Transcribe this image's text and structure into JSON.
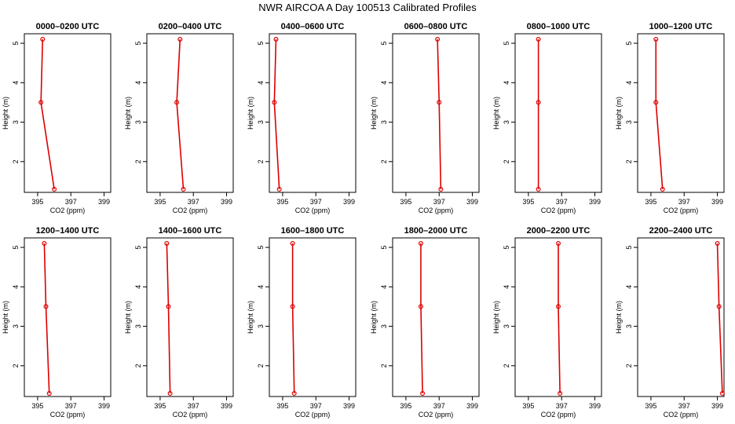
{
  "figure": {
    "title": "NWR AIRCOA A  Day 100513  Calibrated Profiles",
    "x_label": "CO2 (ppm)",
    "y_label": "Height (m)",
    "x_ticks": [
      395,
      397,
      399
    ],
    "y_ticks": [
      2,
      3,
      4,
      5
    ],
    "xlim": [
      394.2,
      399.4
    ],
    "ylim": [
      1.22,
      5.24
    ],
    "line_color": "#dd0000"
  },
  "chart_data": [
    {
      "type": "line",
      "title": "0000–0200 UTC",
      "x": [
        396.0,
        395.2,
        395.3
      ],
      "y": [
        1.3,
        3.5,
        5.1
      ]
    },
    {
      "type": "line",
      "title": "0200–0400 UTC",
      "x": [
        396.4,
        396.0,
        396.2
      ],
      "y": [
        1.3,
        3.5,
        5.1
      ]
    },
    {
      "type": "line",
      "title": "0400–0600 UTC",
      "x": [
        394.8,
        394.5,
        394.6
      ],
      "y": [
        1.3,
        3.5,
        5.1
      ]
    },
    {
      "type": "line",
      "title": "0600–0800 UTC",
      "x": [
        397.1,
        397.0,
        396.9
      ],
      "y": [
        1.3,
        3.5,
        5.1
      ]
    },
    {
      "type": "line",
      "title": "0800–1000 UTC",
      "x": [
        395.6,
        395.6,
        395.6
      ],
      "y": [
        1.3,
        3.5,
        5.1
      ]
    },
    {
      "type": "line",
      "title": "1000–1200 UTC",
      "x": [
        395.7,
        395.3,
        395.3
      ],
      "y": [
        1.3,
        3.5,
        5.1
      ]
    },
    {
      "type": "line",
      "title": "1200–1400 UTC",
      "x": [
        395.7,
        395.5,
        395.4
      ],
      "y": [
        1.3,
        3.5,
        5.1
      ]
    },
    {
      "type": "line",
      "title": "1400–1600 UTC",
      "x": [
        395.6,
        395.5,
        395.4
      ],
      "y": [
        1.3,
        3.5,
        5.1
      ]
    },
    {
      "type": "line",
      "title": "1600–1800 UTC",
      "x": [
        395.7,
        395.6,
        395.6
      ],
      "y": [
        1.3,
        3.5,
        5.1
      ]
    },
    {
      "type": "line",
      "title": "1800–2000 UTC",
      "x": [
        396.0,
        395.9,
        395.9
      ],
      "y": [
        1.3,
        3.5,
        5.1
      ]
    },
    {
      "type": "line",
      "title": "2000–2200 UTC",
      "x": [
        396.9,
        396.8,
        396.8
      ],
      "y": [
        1.3,
        3.5,
        5.1
      ]
    },
    {
      "type": "line",
      "title": "2200–2400 UTC",
      "x": [
        399.3,
        399.1,
        399.0
      ],
      "y": [
        1.3,
        3.5,
        5.1
      ]
    }
  ]
}
